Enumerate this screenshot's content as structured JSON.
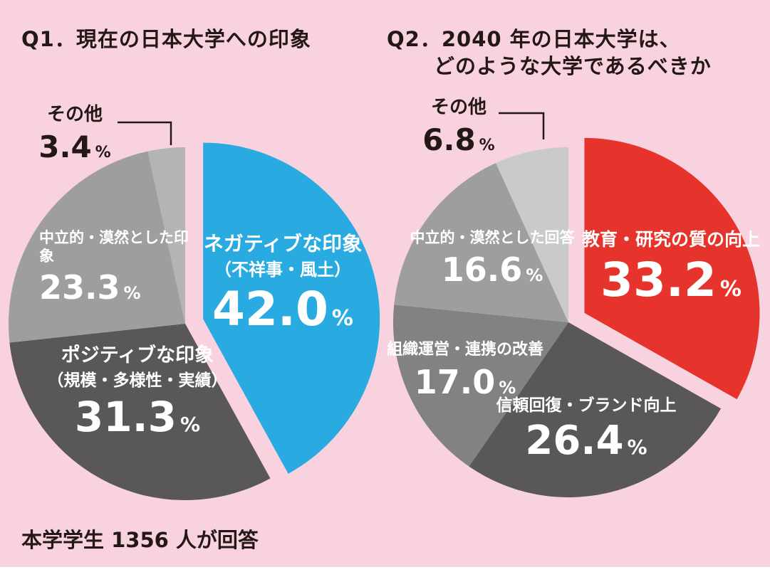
{
  "unit": "%",
  "header": {
    "q1_title": "Q1．現在の日本大学への印象",
    "q2_title_line1": "Q2．2040 年の日本大学は、",
    "q2_title_line2": "どのような大学であるべきか"
  },
  "footer": {
    "caption": "本学学生 1356 人が回答"
  },
  "colors": {
    "background": "#f8d3df",
    "q1_accent": "#29abe2",
    "q2_accent": "#e6342c",
    "text_dark": "#231815",
    "text_light": "#ffffff"
  },
  "chart_data": [
    {
      "type": "pie",
      "title": "Q1．現在の日本大学への印象",
      "start_angle_deg": 0,
      "direction": "clockwise",
      "slices": [
        {
          "label": "ネガティブな印象",
          "sublabel": "（不祥事・風土）",
          "value": 42.0,
          "display": "42.0",
          "color": "#29abe2",
          "exploded": true
        },
        {
          "label": "ポジティブな印象",
          "sublabel": "（規模・多様性・実績）",
          "value": 31.3,
          "display": "31.3",
          "color": "#595757",
          "exploded": false
        },
        {
          "label": "中立的・漠然とした印象",
          "value": 23.3,
          "display": "23.3",
          "color": "#9e9e9f",
          "exploded": false
        },
        {
          "label": "その他",
          "value": 3.4,
          "display": "3.4",
          "color": "#b4b4b5",
          "exploded": false
        }
      ]
    },
    {
      "type": "pie",
      "title": "Q2．2040 年の日本大学は、どのような大学であるべきか",
      "start_angle_deg": 0,
      "direction": "clockwise",
      "slices": [
        {
          "label": "教育・研究の質の向上",
          "value": 33.2,
          "display": "33.2",
          "color": "#e6342c",
          "exploded": true
        },
        {
          "label": "信頼回復・ブランド向上",
          "value": 26.4,
          "display": "26.4",
          "color": "#595757",
          "exploded": false
        },
        {
          "label": "組織運営・連携の改善",
          "value": 17.0,
          "display": "17.0",
          "color": "#828283",
          "exploded": false
        },
        {
          "label": "中立的・漠然とした回答",
          "value": 16.6,
          "display": "16.6",
          "color": "#9e9e9f",
          "exploded": false
        },
        {
          "label": "その他",
          "value": 6.8,
          "display": "6.8",
          "color": "#c9caca",
          "exploded": false
        }
      ]
    }
  ]
}
